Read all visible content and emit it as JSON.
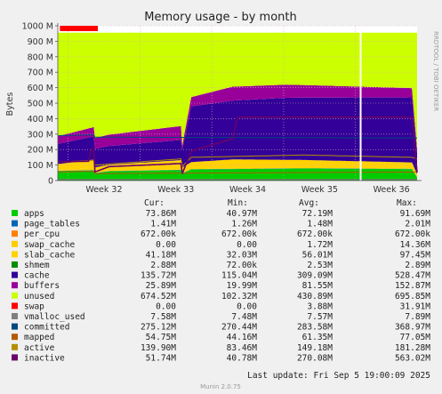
{
  "chart_data": {
    "type": "area",
    "title": "Memory usage - by month",
    "ylabel": "Bytes",
    "watermark": "RRDTOOL / TOBI OETIKER",
    "ylim": [
      0,
      1000000000
    ],
    "y_ticks": [
      {
        "value": 0,
        "label": "0"
      },
      {
        "value": 100000000,
        "label": "100 M"
      },
      {
        "value": 200000000,
        "label": "200 M"
      },
      {
        "value": 300000000,
        "label": "300 M"
      },
      {
        "value": 400000000,
        "label": "400 M"
      },
      {
        "value": 500000000,
        "label": "500 M"
      },
      {
        "value": 600000000,
        "label": "600 M"
      },
      {
        "value": 700000000,
        "label": "700 M"
      },
      {
        "value": 800000000,
        "label": "800 M"
      },
      {
        "value": 900000000,
        "label": "900 M"
      },
      {
        "value": 1000000000,
        "label": "1000 M"
      }
    ],
    "x_range": [
      0,
      35
    ],
    "x_ticks": [
      {
        "value": 4.5,
        "label": "Week 32"
      },
      {
        "value": 11.5,
        "label": "Week 33"
      },
      {
        "value": 18.5,
        "label": "Week 34"
      },
      {
        "value": 25.5,
        "label": "Week 35"
      },
      {
        "value": 32.5,
        "label": "Week 36"
      }
    ],
    "day_gridlines": [
      1,
      8,
      15,
      22,
      29
    ],
    "now_marker": 29.5,
    "headers": {
      "cur": "Cur:",
      "min": "Min:",
      "avg": "Avg:",
      "max": "Max:"
    },
    "stacked_series": [
      {
        "name": "apps",
        "color": "#00cc00"
      },
      {
        "name": "page_tables",
        "color": "#0066b3"
      },
      {
        "name": "per_cpu",
        "color": "#ff8000"
      },
      {
        "name": "swap_cache",
        "color": "#ffcc00"
      },
      {
        "name": "slab_cache",
        "color": "#ffd200"
      },
      {
        "name": "cache",
        "color": "#330099"
      },
      {
        "name": "buffers",
        "color": "#990099"
      },
      {
        "name": "unused",
        "color": "#ccff00"
      },
      {
        "name": "swap",
        "color": "#ff0000"
      }
    ],
    "line_series": [
      "shmem",
      "vmalloc_used",
      "committed",
      "mapped",
      "active",
      "inactive"
    ],
    "legend": [
      {
        "name": "apps",
        "color": "#00cc00",
        "cur": "73.86M",
        "min": "40.97M",
        "avg": "72.19M",
        "max": "91.69M"
      },
      {
        "name": "page_tables",
        "color": "#0066b3",
        "cur": "1.41M",
        "min": "1.26M",
        "avg": "1.48M",
        "max": "2.01M"
      },
      {
        "name": "per_cpu",
        "color": "#ff8000",
        "cur": "672.00k",
        "min": "672.00k",
        "avg": "672.00k",
        "max": "672.00k"
      },
      {
        "name": "swap_cache",
        "color": "#ffcc00",
        "cur": "0.00",
        "min": "0.00",
        "avg": "1.72M",
        "max": "14.36M"
      },
      {
        "name": "slab_cache",
        "color": "#ffd200",
        "cur": "41.18M",
        "min": "32.03M",
        "avg": "56.01M",
        "max": "97.45M"
      },
      {
        "name": "shmem",
        "color": "#008f00",
        "cur": "2.88M",
        "min": "72.00k",
        "avg": "2.53M",
        "max": "2.89M"
      },
      {
        "name": "cache",
        "color": "#330099",
        "cur": "135.72M",
        "min": "115.04M",
        "avg": "309.09M",
        "max": "528.47M"
      },
      {
        "name": "buffers",
        "color": "#990099",
        "cur": "25.89M",
        "min": "19.99M",
        "avg": "81.55M",
        "max": "152.87M"
      },
      {
        "name": "unused",
        "color": "#ccff00",
        "cur": "674.52M",
        "min": "102.32M",
        "avg": "430.89M",
        "max": "695.85M"
      },
      {
        "name": "swap",
        "color": "#ff0000",
        "cur": "0.00",
        "min": "0.00",
        "avg": "3.88M",
        "max": "31.91M"
      },
      {
        "name": "vmalloc_used",
        "color": "#808080",
        "cur": "7.58M",
        "min": "7.48M",
        "avg": "7.57M",
        "max": "7.89M"
      },
      {
        "name": "committed",
        "color": "#00487d",
        "cur": "275.12M",
        "min": "270.44M",
        "avg": "283.58M",
        "max": "368.97M"
      },
      {
        "name": "mapped",
        "color": "#b35a00",
        "cur": "54.75M",
        "min": "44.16M",
        "avg": "61.35M",
        "max": "77.05M"
      },
      {
        "name": "active",
        "color": "#b38f00",
        "cur": "139.90M",
        "min": "83.46M",
        "avg": "149.18M",
        "max": "181.28M"
      },
      {
        "name": "inactive",
        "color": "#6b006b",
        "cur": "51.74M",
        "min": "40.78M",
        "avg": "270.08M",
        "max": "563.02M"
      }
    ],
    "last_update": "Last update: Fri Sep  5 19:00:09 2025",
    "footer": "Munin 2.0.75"
  }
}
